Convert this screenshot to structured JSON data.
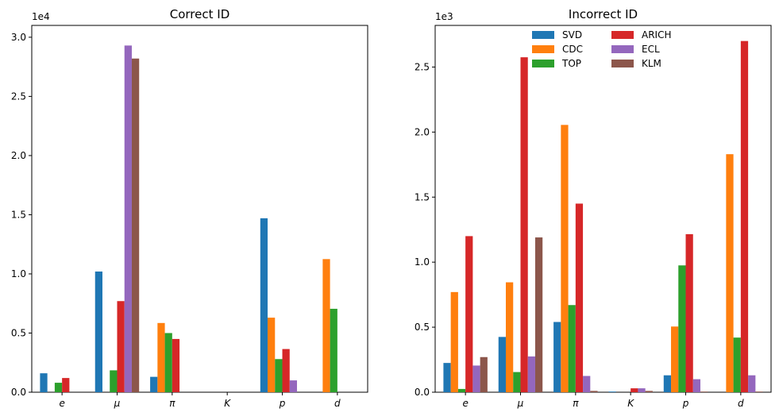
{
  "chart_data": [
    {
      "type": "bar",
      "title": "Correct ID",
      "xlabel": "",
      "ylabel": "",
      "categories": [
        "e",
        "μ",
        "π",
        "K",
        "p",
        "d"
      ],
      "y_offset_label": "1e4",
      "yticks": [
        "0.0",
        "0.5",
        "1.0",
        "1.5",
        "2.0",
        "2.5",
        "3.0"
      ],
      "ylim": [
        0,
        31000
      ],
      "legend": false,
      "series": [
        {
          "name": "SVD",
          "color": "#1f77b4",
          "values": [
            1600,
            10200,
            1300,
            0,
            14700,
            0
          ]
        },
        {
          "name": "CDC",
          "color": "#ff7f0e",
          "values": [
            0,
            0,
            5850,
            0,
            6300,
            11250
          ]
        },
        {
          "name": "TOP",
          "color": "#2ca02c",
          "values": [
            800,
            1850,
            5000,
            0,
            2800,
            7050
          ]
        },
        {
          "name": "ARICH",
          "color": "#d62728",
          "values": [
            1200,
            7700,
            4500,
            0,
            3650,
            0
          ]
        },
        {
          "name": "ECL",
          "color": "#9467bd",
          "values": [
            0,
            29300,
            0,
            0,
            1000,
            0
          ]
        },
        {
          "name": "KLM",
          "color": "#8c564b",
          "values": [
            0,
            28200,
            0,
            0,
            0,
            0
          ]
        }
      ]
    },
    {
      "type": "bar",
      "title": "Incorrect ID",
      "xlabel": "",
      "ylabel": "",
      "categories": [
        "e",
        "μ",
        "π",
        "K",
        "p",
        "d"
      ],
      "y_offset_label": "1e3",
      "yticks": [
        "0.0",
        "0.5",
        "1.0",
        "1.5",
        "2.0",
        "2.5"
      ],
      "ylim": [
        0,
        2820
      ],
      "legend": true,
      "legend_position": "top-center",
      "series": [
        {
          "name": "SVD",
          "color": "#1f77b4",
          "values": [
            225,
            425,
            540,
            5,
            130,
            0
          ]
        },
        {
          "name": "CDC",
          "color": "#ff7f0e",
          "values": [
            770,
            845,
            2055,
            0,
            505,
            1830
          ]
        },
        {
          "name": "TOP",
          "color": "#2ca02c",
          "values": [
            25,
            155,
            670,
            0,
            975,
            420
          ]
        },
        {
          "name": "ARICH",
          "color": "#d62728",
          "values": [
            1200,
            2575,
            1450,
            30,
            1215,
            2700
          ]
        },
        {
          "name": "ECL",
          "color": "#9467bd",
          "values": [
            205,
            275,
            125,
            30,
            100,
            130
          ]
        },
        {
          "name": "KLM",
          "color": "#8c564b",
          "values": [
            270,
            1190,
            10,
            10,
            5,
            5
          ]
        }
      ]
    }
  ]
}
